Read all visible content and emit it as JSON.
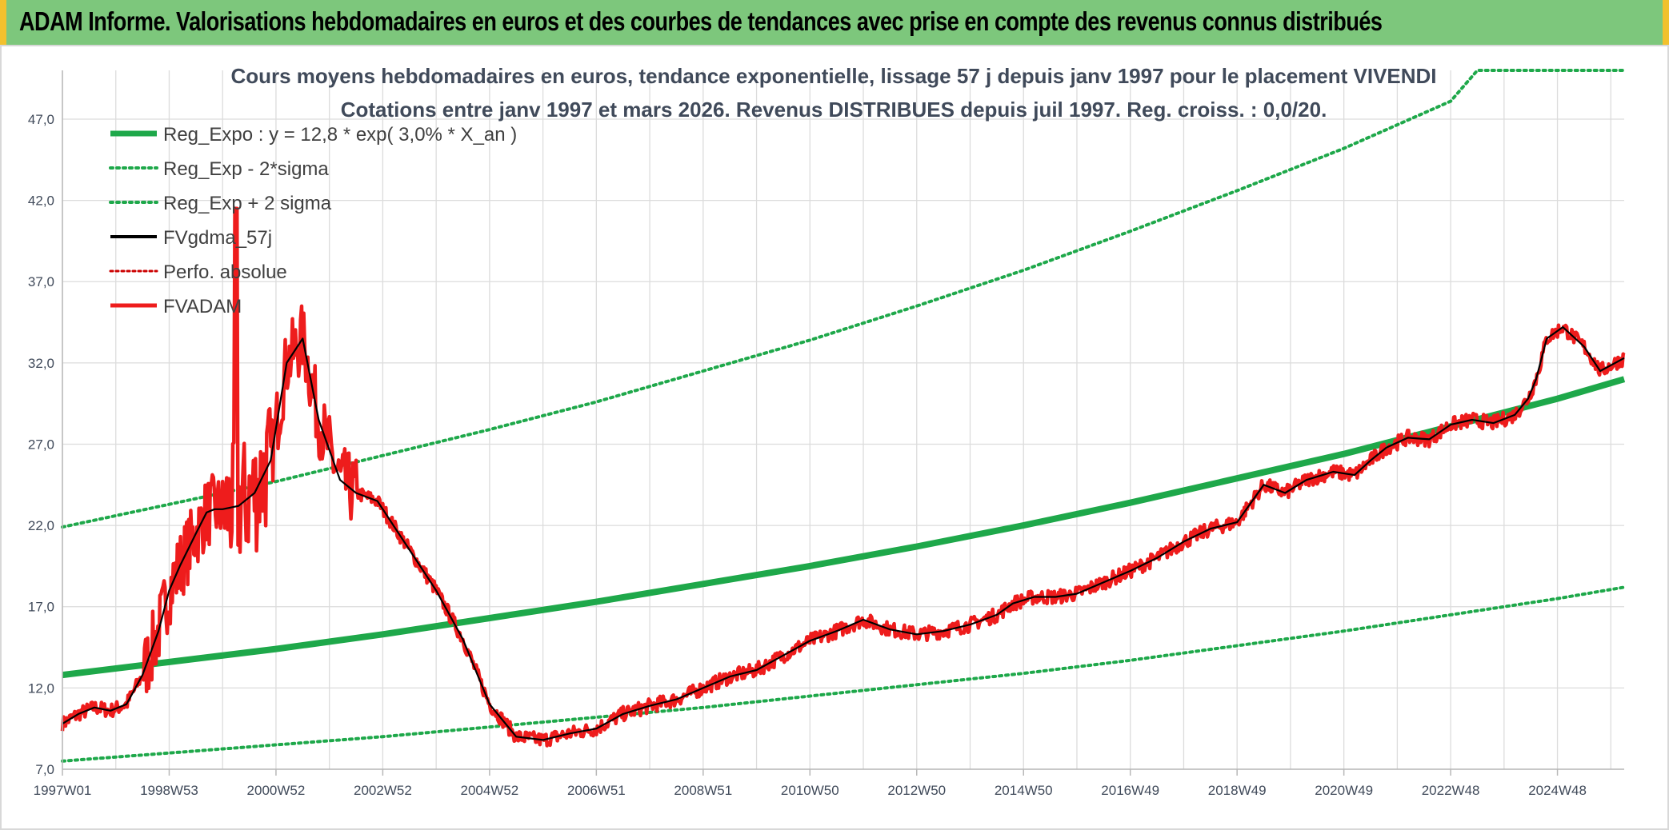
{
  "header": {
    "title": "ADAM Informe. Valorisations hebdomadaires en euros et des courbes de tendances avec prise en compte des revenus connus distribués"
  },
  "colors": {
    "header_bg": "#7dc77c",
    "corner_accent": "#f2c12e",
    "trend_green": "#1ea84a",
    "fvadam_red": "#ee1c1c",
    "smooth_black": "#000000",
    "perfo_red": "#cc0000",
    "grid": "#dcdcdc"
  },
  "chart_data": {
    "type": "line",
    "title_lines": [
      "Cours moyens hebdomadaires en euros, tendance exponentielle, lissage 57 j depuis janv 1997 pour le placement VIVENDI",
      "Cotations entre janv 1997 et mars 2026. Revenus DISTRIBUES depuis juil 1997. Reg. croiss. : 0,0/20."
    ],
    "xlabel": "",
    "ylabel": "",
    "ylim": [
      7,
      50
    ],
    "xlim": [
      1997.0,
      2026.25
    ],
    "y_ticks": [
      "7,0",
      "12,0",
      "17,0",
      "22,0",
      "27,0",
      "32,0",
      "37,0",
      "42,0",
      "47,0"
    ],
    "x_ticks": [
      "1997W01",
      "1998W53",
      "2000W52",
      "2002W52",
      "2004W52",
      "2006W51",
      "2008W51",
      "2010W50",
      "2012W50",
      "2014W50",
      "2016W49",
      "2018W49",
      "2020W49",
      "2022W48",
      "2024W48"
    ],
    "grid": true,
    "legend_position": "top-left",
    "legend": [
      {
        "label": "Reg_Expo : y = 12,8 * exp( 3,0% *  X_an )",
        "style": "thick"
      },
      {
        "label": "Reg_Exp - 2*sigma",
        "style": "dotted-green"
      },
      {
        "label": "Reg_Exp + 2 sigma",
        "style": "dotted-green"
      },
      {
        "label": "FVgdma_57j",
        "style": "black"
      },
      {
        "label": "Perfo. absolue",
        "style": "dotted-red"
      },
      {
        "label": "FVADAM",
        "style": "red"
      }
    ],
    "series": [
      {
        "name": "Reg_Expo : y = 12,8 * exp( 3,0% *  X_an )",
        "x": [
          1997.0,
          1999.0,
          2001.0,
          2003.0,
          2005.0,
          2007.0,
          2009.0,
          2011.0,
          2013.0,
          2015.0,
          2017.0,
          2019.0,
          2021.0,
          2023.0,
          2025.0,
          2026.25
        ],
        "values": [
          12.8,
          13.6,
          14.4,
          15.3,
          16.3,
          17.3,
          18.4,
          19.5,
          20.7,
          22.0,
          23.4,
          24.9,
          26.4,
          28.1,
          29.8,
          31.0
        ]
      },
      {
        "name": "Reg_Exp - 2*sigma",
        "x": [
          1997.0,
          1999.0,
          2001.0,
          2003.0,
          2005.0,
          2007.0,
          2009.0,
          2011.0,
          2013.0,
          2015.0,
          2017.0,
          2019.0,
          2021.0,
          2023.0,
          2025.0,
          2026.25
        ],
        "values": [
          7.5,
          8.0,
          8.5,
          9.0,
          9.6,
          10.2,
          10.8,
          11.5,
          12.2,
          12.9,
          13.7,
          14.6,
          15.5,
          16.5,
          17.5,
          18.2
        ]
      },
      {
        "name": "Reg_Exp + 2 sigma",
        "x": [
          1997.0,
          1999.0,
          2001.0,
          2003.0,
          2005.0,
          2007.0,
          2009.0,
          2011.0,
          2013.0,
          2015.0,
          2017.0,
          2019.0,
          2021.0,
          2023.0,
          2023.5,
          2026.25
        ],
        "values": [
          21.9,
          23.3,
          24.7,
          26.3,
          27.9,
          29.6,
          31.5,
          33.4,
          35.5,
          37.7,
          40.1,
          42.6,
          45.2,
          48.1,
          50.0,
          50.0
        ]
      },
      {
        "name": "FVgdma_57j",
        "x": [
          1997.0,
          1997.3,
          1997.6,
          1997.9,
          1998.2,
          1998.5,
          1998.8,
          1999.0,
          1999.2,
          1999.5,
          1999.7,
          1999.85,
          2000.0,
          2000.3,
          2000.6,
          2000.9,
          2001.2,
          2001.5,
          2001.8,
          2002.2,
          2002.5,
          2002.9,
          2003.3,
          2003.7,
          2004.0,
          2004.5,
          2005.0,
          2005.5,
          2006.0,
          2006.5,
          2007.0,
          2007.5,
          2008.0,
          2008.5,
          2009.0,
          2009.5,
          2010.0,
          2010.5,
          2011.0,
          2011.5,
          2012.0,
          2012.5,
          2013.0,
          2013.5,
          2014.0,
          2014.5,
          2014.8,
          2015.2,
          2015.6,
          2016.0,
          2016.5,
          2017.0,
          2017.5,
          2018.0,
          2018.5,
          2019.0,
          2019.5,
          2019.9,
          2020.3,
          2020.8,
          2021.2,
          2021.5,
          2021.8,
          2022.2,
          2022.6,
          2023.0,
          2023.4,
          2023.8,
          2024.2,
          2024.45,
          2024.6,
          2024.8,
          2025.1,
          2025.5,
          2025.8,
          2026.25
        ],
        "values": [
          9.8,
          10.4,
          10.8,
          10.6,
          11.0,
          12.8,
          15.5,
          18.0,
          19.5,
          21.5,
          22.8,
          23.0,
          23.0,
          23.2,
          24.0,
          26.0,
          32.0,
          33.5,
          28.5,
          24.8,
          24.0,
          23.5,
          21.5,
          19.5,
          18.0,
          15.0,
          11.0,
          9.0,
          8.8,
          9.2,
          9.5,
          10.4,
          10.9,
          11.3,
          12.0,
          12.7,
          13.1,
          14.0,
          14.9,
          15.5,
          16.2,
          15.6,
          15.3,
          15.5,
          15.9,
          16.5,
          17.2,
          17.6,
          17.6,
          17.8,
          18.5,
          19.2,
          20.0,
          21.0,
          21.8,
          22.2,
          24.5,
          24.0,
          24.8,
          25.3,
          25.1,
          26.0,
          26.8,
          27.4,
          27.3,
          28.2,
          28.5,
          28.3,
          28.8,
          29.8,
          31.0,
          33.5,
          34.2,
          33.0,
          31.5,
          32.3
        ],
        "note": ""
      },
      {
        "name": "FVADAM",
        "x": [],
        "values": []
      }
    ]
  }
}
